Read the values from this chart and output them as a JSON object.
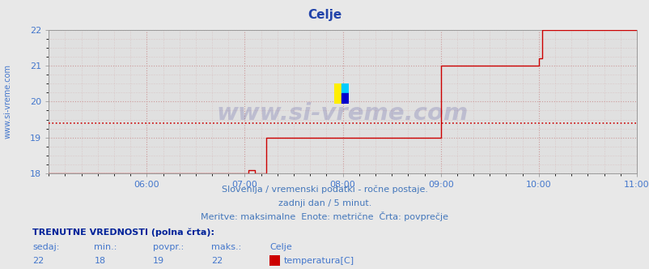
{
  "title": "Celje",
  "title_color": "#2244aa",
  "title_fontsize": 11,
  "bg_color": "#e8e8e8",
  "plot_bg_color": "#e0e0e0",
  "grid_color": "#cc9999",
  "grid_style": ":",
  "line_color": "#cc0000",
  "avg_line_color": "#cc0000",
  "avg_line_style": ":",
  "avg_value": 19.4,
  "ylim": [
    18,
    22
  ],
  "yticks": [
    18,
    19,
    20,
    21,
    22
  ],
  "xlim_start": 300,
  "xlim_end": 660,
  "xtick_labels": [
    "06:00",
    "07:00",
    "08:00",
    "09:00",
    "10:00",
    "11:00"
  ],
  "xtick_positions": [
    360,
    420,
    480,
    540,
    600,
    660
  ],
  "xlabel_color": "#4477cc",
  "ylabel_color": "#4477cc",
  "watermark_text": "www.si-vreme.com",
  "watermark_color": "#222288",
  "watermark_alpha": 0.18,
  "sub_text1": "Slovenija / vremenski podatki - ročne postaje.",
  "sub_text2": "zadnji dan / 5 minut.",
  "sub_text3": "Meritve: maksimalne  Enote: metrične  Črta: povprečje",
  "sub_text_color": "#4477bb",
  "sub_fontsize": 8,
  "bottom_label1": "TRENUTNE VREDNOSTI (polna črta):",
  "bottom_label2_cols": [
    "sedaj:",
    "min.:",
    "povpr.:",
    "maks.:",
    "Celje"
  ],
  "bottom_label3_cols": [
    "22",
    "18",
    "19",
    "22",
    "temperatura[C]"
  ],
  "bottom_color1": "#002299",
  "bottom_color2": "#4477cc",
  "bottom_color3": "#4477cc",
  "legend_rect_color": "#cc0000",
  "ylabel_side_text": "www.si-vreme.com",
  "ylabel_fontsize": 7,
  "ylabel_color2": "#4477cc",
  "data_x": [
    300,
    305,
    310,
    315,
    320,
    325,
    330,
    335,
    340,
    345,
    350,
    355,
    360,
    365,
    370,
    375,
    380,
    385,
    390,
    395,
    400,
    405,
    410,
    415,
    420,
    422,
    424,
    426,
    428,
    430,
    432,
    433,
    434,
    435,
    436,
    437,
    438,
    440,
    445,
    450,
    455,
    460,
    465,
    470,
    475,
    480,
    485,
    490,
    495,
    500,
    505,
    510,
    515,
    520,
    525,
    530,
    535,
    540,
    542,
    545,
    550,
    555,
    560,
    565,
    570,
    575,
    580,
    585,
    590,
    595,
    600,
    602,
    605,
    610,
    615,
    620,
    625,
    630,
    635,
    640,
    645,
    650,
    655,
    660
  ],
  "data_y": [
    18.0,
    18.0,
    18.0,
    18.0,
    18.0,
    18.0,
    18.0,
    18.0,
    18.0,
    18.0,
    18.0,
    18.0,
    18.0,
    18.0,
    18.0,
    18.0,
    18.0,
    18.0,
    18.0,
    18.0,
    18.0,
    18.0,
    18.0,
    18.0,
    18.0,
    18.1,
    18.1,
    18.0,
    18.0,
    18.0,
    18.0,
    19.0,
    19.0,
    19.0,
    19.0,
    19.0,
    19.0,
    19.0,
    19.0,
    19.0,
    19.0,
    19.0,
    19.0,
    19.0,
    19.0,
    19.0,
    19.0,
    19.0,
    19.0,
    19.0,
    19.0,
    19.0,
    19.0,
    19.0,
    19.0,
    19.0,
    19.0,
    21.0,
    21.0,
    21.0,
    21.0,
    21.0,
    21.0,
    21.0,
    21.0,
    21.0,
    21.0,
    21.0,
    21.0,
    21.0,
    21.2,
    22.0,
    22.0,
    22.0,
    22.0,
    22.0,
    22.0,
    22.0,
    22.0,
    22.0,
    22.0,
    22.0,
    22.0,
    22.0
  ]
}
